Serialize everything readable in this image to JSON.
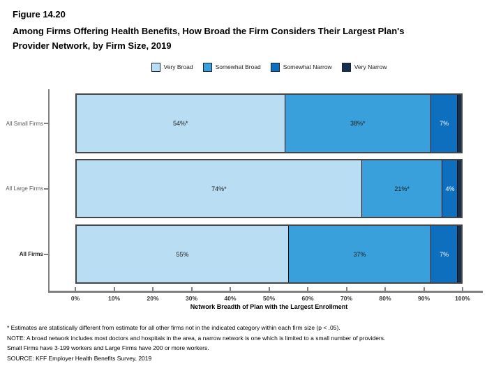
{
  "figure": {
    "number": "Figure 14.20",
    "title_lines": [
      "Among Firms Offering Health Benefits, How Broad the Firm Considers Their Largest Plan's",
      "Provider Network, by Firm Size, 2019"
    ]
  },
  "legend": [
    {
      "label": "Very Broad",
      "color": "#B9DDF2"
    },
    {
      "label": "Somewhat Broad",
      "color": "#39A0DB"
    },
    {
      "label": "Somewhat Narrow",
      "color": "#0D6FBE"
    },
    {
      "label": "Very Narrow",
      "color": "#182E4D"
    }
  ],
  "chart_data": {
    "type": "bar",
    "orientation": "horizontal",
    "stacked": true,
    "categories": [
      "All Small Firms",
      "All Large Firms",
      "All Firms"
    ],
    "category_emphasis": [
      false,
      false,
      true
    ],
    "series": [
      {
        "name": "Very Broad",
        "color": "#B9DDF2",
        "values": [
          54,
          74,
          55
        ],
        "data_labels": [
          "54%*",
          "74%*",
          "55%"
        ]
      },
      {
        "name": "Somewhat Broad",
        "color": "#39A0DB",
        "values": [
          38,
          21,
          37
        ],
        "data_labels": [
          "38%*",
          "21%*",
          "37%"
        ]
      },
      {
        "name": "Somewhat Narrow",
        "color": "#0D6FBE",
        "values": [
          7,
          4,
          7
        ],
        "data_labels": [
          "7%",
          "4%",
          "7%"
        ]
      },
      {
        "name": "Very Narrow",
        "color": "#182E4D",
        "values": [
          1,
          1,
          1
        ],
        "data_labels": [
          "",
          "",
          ""
        ]
      }
    ],
    "xlabel": "Network Breadth of Plan with the Largest Enrollment",
    "x_ticks": [
      "0%",
      "10%",
      "20%",
      "30%",
      "40%",
      "50%",
      "60%",
      "70%",
      "80%",
      "90%",
      "100%"
    ],
    "xlim": [
      0,
      100
    ],
    "grid": false,
    "legend_position": "top"
  },
  "footnotes": [
    "* Estimates are statistically different from estimate for all other firms not in the indicated category within each firm size (p < .05).",
    "NOTE: A broad network includes most doctors and hospitals in the area, a narrow network is one which is limited to a small number of providers.",
    "Small Firms have 3-199 workers and Large Firms have 200 or more workers.",
    "SOURCE: KFF Employer Health Benefits Survey, 2019"
  ]
}
